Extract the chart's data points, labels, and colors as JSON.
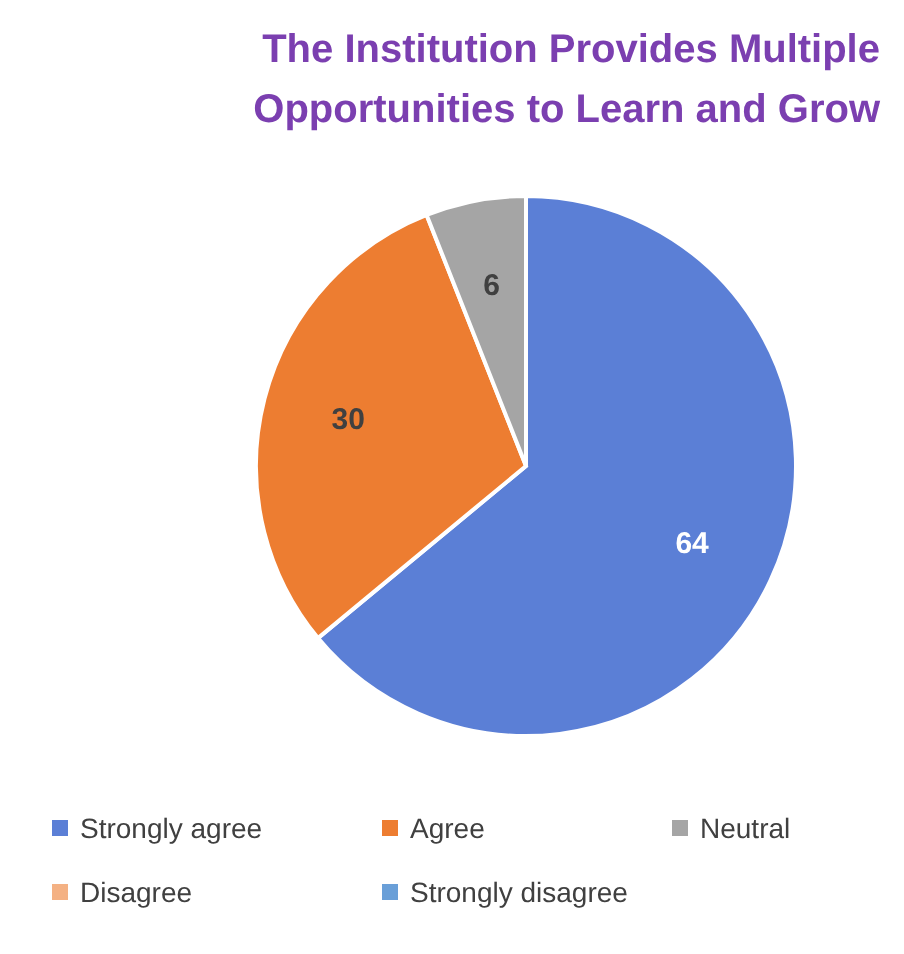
{
  "chart_data": {
    "type": "pie",
    "title": "The Institution Provides Multiple Opportunities to Learn and Grow",
    "categories": [
      "Strongly agree",
      "Agree",
      "Neutral",
      "Disagree",
      "Strongly disagree"
    ],
    "values": [
      64,
      30,
      6,
      0,
      0
    ],
    "colors": [
      "#5b7fd6",
      "#ed7d31",
      "#a5a5a5",
      "#f4b183",
      "#6a9fd8"
    ],
    "value_labels": [
      "64",
      "30",
      "6",
      null,
      null
    ],
    "legend": "bottom"
  }
}
